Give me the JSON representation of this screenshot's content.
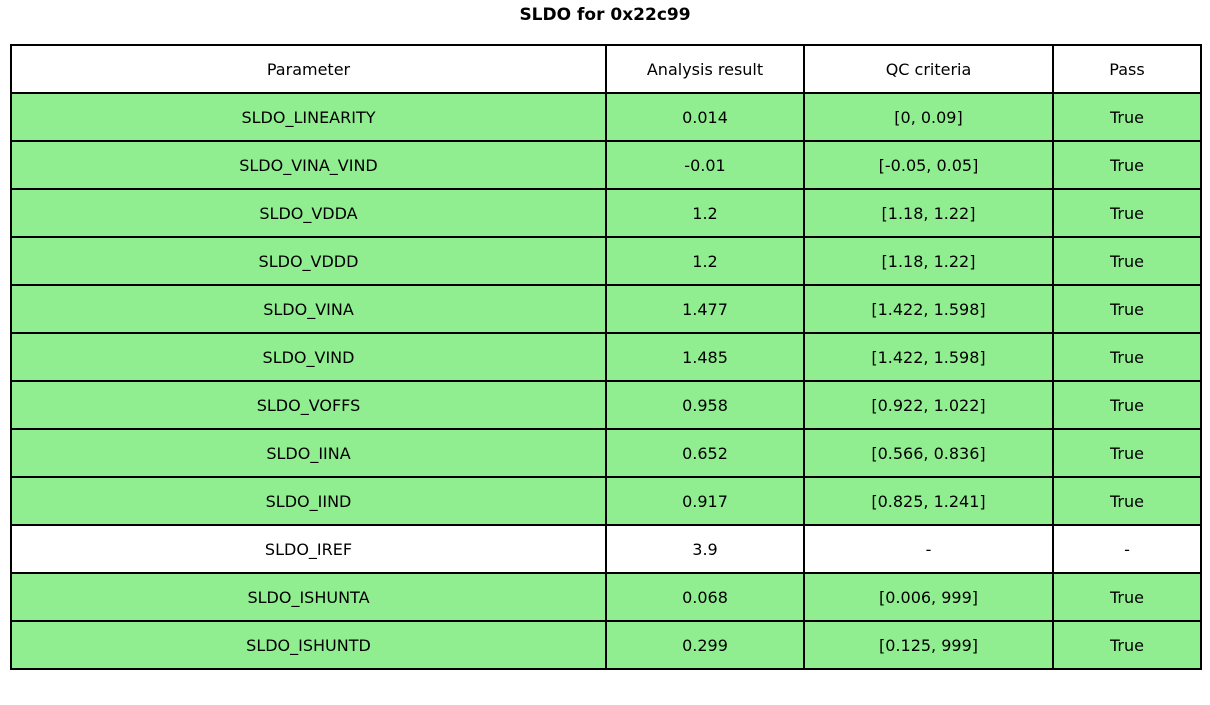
{
  "title": "SLDO for 0x22c99",
  "colors": {
    "pass_row_green": "#90EE90",
    "neutral_row_white": "#FFFFFF",
    "grid_border": "#000000"
  },
  "table": {
    "headers": [
      "Parameter",
      "Analysis result",
      "QC criteria",
      "Pass"
    ],
    "rows": [
      {
        "parameter": "SLDO_LINEARITY",
        "analysis_result": "0.014",
        "qc_criteria": "[0, 0.09]",
        "pass": "True",
        "highlight": true
      },
      {
        "parameter": "SLDO_VINA_VIND",
        "analysis_result": "-0.01",
        "qc_criteria": "[-0.05, 0.05]",
        "pass": "True",
        "highlight": true
      },
      {
        "parameter": "SLDO_VDDA",
        "analysis_result": "1.2",
        "qc_criteria": "[1.18, 1.22]",
        "pass": "True",
        "highlight": true
      },
      {
        "parameter": "SLDO_VDDD",
        "analysis_result": "1.2",
        "qc_criteria": "[1.18, 1.22]",
        "pass": "True",
        "highlight": true
      },
      {
        "parameter": "SLDO_VINA",
        "analysis_result": "1.477",
        "qc_criteria": "[1.422, 1.598]",
        "pass": "True",
        "highlight": true
      },
      {
        "parameter": "SLDO_VIND",
        "analysis_result": "1.485",
        "qc_criteria": "[1.422, 1.598]",
        "pass": "True",
        "highlight": true
      },
      {
        "parameter": "SLDO_VOFFS",
        "analysis_result": "0.958",
        "qc_criteria": "[0.922, 1.022]",
        "pass": "True",
        "highlight": true
      },
      {
        "parameter": "SLDO_IINA",
        "analysis_result": "0.652",
        "qc_criteria": "[0.566, 0.836]",
        "pass": "True",
        "highlight": true
      },
      {
        "parameter": "SLDO_IIND",
        "analysis_result": "0.917",
        "qc_criteria": "[0.825, 1.241]",
        "pass": "True",
        "highlight": true
      },
      {
        "parameter": "SLDO_IREF",
        "analysis_result": "3.9",
        "qc_criteria": "-",
        "pass": "-",
        "highlight": false
      },
      {
        "parameter": "SLDO_ISHUNTA",
        "analysis_result": "0.068",
        "qc_criteria": "[0.006, 999]",
        "pass": "True",
        "highlight": true
      },
      {
        "parameter": "SLDO_ISHUNTD",
        "analysis_result": "0.299",
        "qc_criteria": "[0.125, 999]",
        "pass": "True",
        "highlight": true
      }
    ]
  },
  "chart_data": {
    "type": "table",
    "title": "SLDO for 0x22c99",
    "columns": [
      "Parameter",
      "Analysis result",
      "QC criteria",
      "Pass"
    ],
    "rows": [
      [
        "SLDO_LINEARITY",
        0.014,
        "[0, 0.09]",
        "True"
      ],
      [
        "SLDO_VINA_VIND",
        -0.01,
        "[-0.05, 0.05]",
        "True"
      ],
      [
        "SLDO_VDDA",
        1.2,
        "[1.18, 1.22]",
        "True"
      ],
      [
        "SLDO_VDDD",
        1.2,
        "[1.18, 1.22]",
        "True"
      ],
      [
        "SLDO_VINA",
        1.477,
        "[1.422, 1.598]",
        "True"
      ],
      [
        "SLDO_VIND",
        1.485,
        "[1.422, 1.598]",
        "True"
      ],
      [
        "SLDO_VOFFS",
        0.958,
        "[0.922, 1.022]",
        "True"
      ],
      [
        "SLDO_IINA",
        0.652,
        "[0.566, 0.836]",
        "True"
      ],
      [
        "SLDO_IIND",
        0.917,
        "[0.825, 1.241]",
        "True"
      ],
      [
        "SLDO_IREF",
        3.9,
        "-",
        "-"
      ],
      [
        "SLDO_ISHUNTA",
        0.068,
        "[0.006, 999]",
        "True"
      ],
      [
        "SLDO_ISHUNTD",
        0.299,
        "[0.125, 999]",
        "True"
      ]
    ],
    "row_colors": [
      "green",
      "green",
      "green",
      "green",
      "green",
      "green",
      "green",
      "green",
      "green",
      "white",
      "green",
      "green"
    ],
    "layout": "title centered above full-width bordered table; all cells center-aligned; black 2px grid"
  }
}
